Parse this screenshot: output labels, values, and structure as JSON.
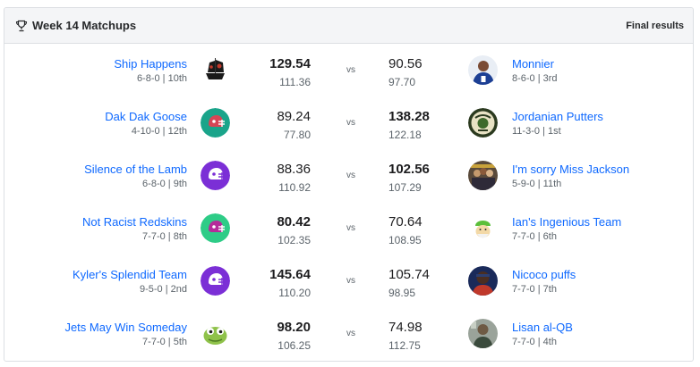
{
  "header": {
    "title": "Week 14 Matchups",
    "status": "Final results",
    "icon": "trophy-icon"
  },
  "matchups": [
    {
      "left": {
        "name": "Ship Happens",
        "record": "6-8-0 | 10th",
        "score": "129.54",
        "projected": "111.36",
        "avatar": "pirate-ship-avatar"
      },
      "vs": "vs",
      "right": {
        "name": "Monnier",
        "record": "8-6-0 | 3rd",
        "score": "90.56",
        "projected": "97.70",
        "avatar": "player-photo-avatar"
      },
      "winner": "left"
    },
    {
      "left": {
        "name": "Dak Dak Goose",
        "record": "4-10-0 | 12th",
        "score": "89.24",
        "projected": "77.80",
        "avatar": "helmet-avatar"
      },
      "vs": "vs",
      "right": {
        "name": "Jordanian Putters",
        "record": "11-3-0 | 1st",
        "score": "138.28",
        "projected": "122.18",
        "avatar": "crest-avatar"
      },
      "winner": "right"
    },
    {
      "left": {
        "name": "Silence of the Lamb",
        "record": "6-8-0 | 9th",
        "score": "88.36",
        "projected": "110.92",
        "avatar": "helmet-avatar"
      },
      "vs": "vs",
      "right": {
        "name": "I'm sorry Miss Jackson",
        "record": "5-9-0 | 11th",
        "score": "102.56",
        "projected": "107.29",
        "avatar": "group-photo-avatar"
      },
      "winner": "right"
    },
    {
      "left": {
        "name": "Not Racist Redskins",
        "record": "7-7-0 | 8th",
        "score": "80.42",
        "projected": "102.35",
        "avatar": "helmet-avatar"
      },
      "vs": "vs",
      "right": {
        "name": "Ian's Ingenious Team",
        "record": "7-7-0 | 6th",
        "score": "70.64",
        "projected": "108.95",
        "avatar": "cartoon-avatar"
      },
      "winner": "left"
    },
    {
      "left": {
        "name": "Kyler's Splendid Team",
        "record": "9-5-0 | 2nd",
        "score": "145.64",
        "projected": "110.20",
        "avatar": "helmet-avatar"
      },
      "vs": "vs",
      "right": {
        "name": "Nicoco puffs",
        "record": "7-7-0 | 7th",
        "score": "105.74",
        "projected": "98.95",
        "avatar": "player-photo-avatar"
      },
      "winner": "left"
    },
    {
      "left": {
        "name": "Jets May Win Someday",
        "record": "7-7-0 | 5th",
        "score": "98.20",
        "projected": "106.25",
        "avatar": "cartoon-lizard-avatar"
      },
      "vs": "vs",
      "right": {
        "name": "Lisan al-QB",
        "record": "7-7-0 | 4th",
        "score": "74.98",
        "projected": "112.75",
        "avatar": "photo-avatar"
      },
      "winner": "left"
    }
  ],
  "colors": {
    "link": "#0f69ff",
    "header_bg": "#f4f5f7",
    "border": "#dcdfe3"
  }
}
